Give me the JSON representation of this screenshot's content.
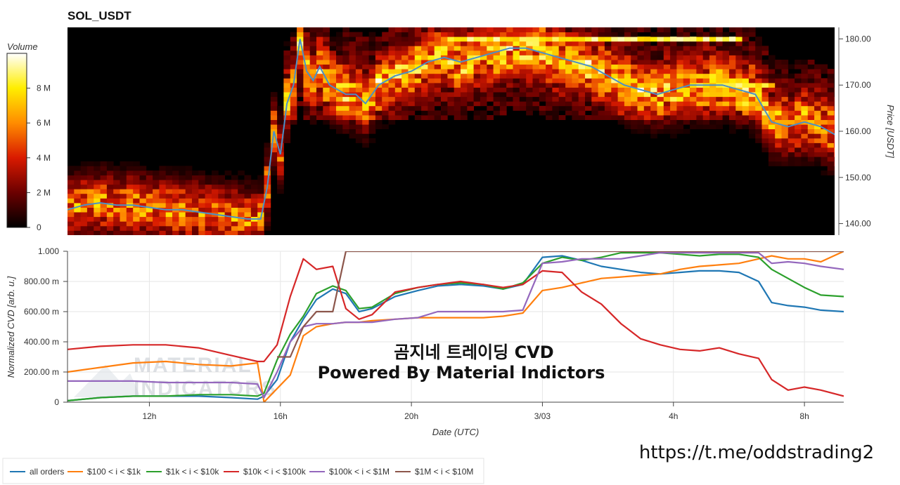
{
  "chart_data": [
    {
      "type": "heatmap",
      "title": "SOL_USDT",
      "ylabel": "Price [USDT]",
      "ylim": [
        137.5,
        182.5
      ],
      "y_ticks": [
        {
          "value": 140,
          "label": "140.00"
        },
        {
          "value": 150,
          "label": "150.00"
        },
        {
          "value": 160,
          "label": "160.00"
        },
        {
          "value": 170,
          "label": "170.00"
        },
        {
          "value": 180,
          "label": "180.00"
        }
      ],
      "colorbar": {
        "title": "Volume",
        "range": [
          0,
          10
        ],
        "ticks": [
          {
            "value": 0,
            "label": "0"
          },
          {
            "value": 2,
            "label": "2 M"
          },
          {
            "value": 4,
            "label": "4 M"
          },
          {
            "value": 6,
            "label": "6 M"
          },
          {
            "value": 8,
            "label": "8 M"
          }
        ],
        "colors": [
          "#000000",
          "#6b0000",
          "#d91a00",
          "#ff8c00",
          "#ffee00",
          "#ffffff"
        ]
      },
      "line_color": "#4a90c8",
      "price_line": {
        "x": [
          9.5,
          10,
          10.5,
          11,
          11.5,
          12,
          12.5,
          13,
          13.5,
          14,
          14.5,
          15,
          15.4,
          15.6,
          15.8,
          16,
          16.2,
          16.4,
          16.6,
          16.8,
          17,
          17.2,
          17.5,
          18,
          18.3,
          18.6,
          19,
          19.5,
          20,
          20.5,
          21,
          21.5,
          22,
          22.5,
          23,
          23.5,
          24,
          24.5,
          25,
          25.5,
          26,
          26.5,
          27,
          27.5,
          28,
          28.5,
          29,
          29.5,
          30,
          30.5,
          31,
          31.5,
          32,
          32.5,
          33,
          33.2
        ],
        "y": [
          143,
          144,
          144.5,
          144,
          144,
          143.5,
          143,
          143,
          142.5,
          142,
          141.5,
          141,
          141,
          148,
          160,
          155,
          166,
          170,
          180,
          173,
          171,
          174,
          170,
          168,
          168,
          166,
          170,
          172,
          173,
          175,
          176,
          175,
          176,
          177,
          178,
          178,
          177,
          176,
          175,
          174,
          172,
          170,
          169,
          168,
          169,
          170,
          170,
          170,
          169,
          168,
          162,
          161,
          162,
          161,
          159,
          159
        ]
      },
      "liquidity_bands": [
        {
          "y": 180,
          "x0": 21.0,
          "x1": 30.0,
          "intensity": 8.5
        },
        {
          "y": 170,
          "x0": 28.5,
          "x1": 31.0,
          "intensity": 8.0
        },
        {
          "y": 162,
          "x0": 31.0,
          "x1": 33.2,
          "intensity": 6.0
        }
      ]
    },
    {
      "type": "line",
      "xlabel": "Date (UTC)",
      "ylabel": "Normalized CVD [arb. u.]",
      "xlim": [
        9.5,
        33.2
      ],
      "ylim": [
        0,
        1.0
      ],
      "x_ticks": [
        {
          "value": 12,
          "label": "12h"
        },
        {
          "value": 16,
          "label": "16h"
        },
        {
          "value": 20,
          "label": "20h"
        },
        {
          "value": 24,
          "label": "3/03"
        },
        {
          "value": 28,
          "label": "4h"
        },
        {
          "value": 32,
          "label": "8h"
        }
      ],
      "y_ticks": [
        {
          "value": 0,
          "label": "0"
        },
        {
          "value": 0.2,
          "label": "200.00 m"
        },
        {
          "value": 0.4,
          "label": "400.00 m"
        },
        {
          "value": 0.6,
          "label": "600.00 m"
        },
        {
          "value": 0.8,
          "label": "800.00 m"
        },
        {
          "value": 1.0,
          "label": "1.000"
        }
      ],
      "x": [
        9.5,
        10.5,
        11.5,
        12.5,
        13.5,
        14.5,
        15.3,
        15.5,
        15.9,
        16.3,
        16.7,
        17.1,
        17.6,
        18.0,
        18.4,
        18.8,
        19.5,
        20.2,
        20.8,
        21.5,
        22.2,
        22.8,
        23.4,
        24.0,
        24.6,
        25.2,
        25.8,
        26.4,
        27.0,
        27.6,
        28.2,
        28.8,
        29.4,
        30.0,
        30.6,
        31.0,
        31.5,
        32.0,
        32.5,
        33.2
      ],
      "series": [
        {
          "name": "all orders",
          "color": "#1f77b4",
          "values": [
            0.01,
            0.03,
            0.04,
            0.04,
            0.04,
            0.03,
            0.02,
            0.04,
            0.15,
            0.4,
            0.55,
            0.68,
            0.75,
            0.72,
            0.6,
            0.62,
            0.7,
            0.74,
            0.77,
            0.78,
            0.77,
            0.75,
            0.78,
            0.96,
            0.97,
            0.94,
            0.9,
            0.88,
            0.86,
            0.85,
            0.86,
            0.87,
            0.87,
            0.86,
            0.8,
            0.66,
            0.64,
            0.63,
            0.61,
            0.6
          ]
        },
        {
          "name": "$100 < i < $1k",
          "color": "#ff7f0e",
          "values": [
            0.2,
            0.23,
            0.26,
            0.27,
            0.25,
            0.24,
            0.26,
            0.0,
            0.09,
            0.18,
            0.44,
            0.5,
            0.52,
            0.53,
            0.53,
            0.54,
            0.55,
            0.56,
            0.56,
            0.56,
            0.56,
            0.57,
            0.59,
            0.74,
            0.76,
            0.79,
            0.82,
            0.83,
            0.84,
            0.85,
            0.88,
            0.9,
            0.91,
            0.92,
            0.95,
            0.97,
            0.95,
            0.95,
            0.93,
            1.0
          ]
        },
        {
          "name": "$1k < i < $10k",
          "color": "#2ca02c",
          "values": [
            0.01,
            0.03,
            0.04,
            0.04,
            0.05,
            0.05,
            0.04,
            0.06,
            0.28,
            0.45,
            0.57,
            0.72,
            0.77,
            0.74,
            0.62,
            0.63,
            0.72,
            0.76,
            0.78,
            0.79,
            0.78,
            0.75,
            0.79,
            0.92,
            0.96,
            0.94,
            0.96,
            0.99,
            0.99,
            0.99,
            0.98,
            0.97,
            0.98,
            0.98,
            0.96,
            0.88,
            0.82,
            0.76,
            0.71,
            0.7
          ]
        },
        {
          "name": "$10k < i < $100k",
          "color": "#d62728",
          "values": [
            0.35,
            0.37,
            0.38,
            0.38,
            0.36,
            0.31,
            0.27,
            0.27,
            0.38,
            0.7,
            0.95,
            0.88,
            0.9,
            0.62,
            0.55,
            0.58,
            0.73,
            0.76,
            0.78,
            0.8,
            0.78,
            0.76,
            0.78,
            0.87,
            0.86,
            0.73,
            0.65,
            0.52,
            0.42,
            0.38,
            0.35,
            0.34,
            0.36,
            0.32,
            0.29,
            0.15,
            0.08,
            0.1,
            0.08,
            0.04
          ]
        },
        {
          "name": "$100k < i < $1M",
          "color": "#9467bd",
          "values": [
            0.14,
            0.14,
            0.14,
            0.13,
            0.13,
            0.13,
            0.12,
            0.03,
            0.2,
            0.4,
            0.5,
            0.52,
            0.52,
            0.53,
            0.53,
            0.53,
            0.55,
            0.56,
            0.6,
            0.6,
            0.6,
            0.6,
            0.61,
            0.92,
            0.93,
            0.95,
            0.95,
            0.95,
            0.97,
            0.99,
            0.99,
            0.99,
            0.99,
            0.99,
            0.99,
            0.92,
            0.93,
            0.92,
            0.9,
            0.88
          ]
        },
        {
          "name": "$1M < i < $10M",
          "color": "#8c564b",
          "values": [
            null,
            null,
            null,
            null,
            null,
            null,
            null,
            null,
            0.3,
            0.3,
            0.5,
            0.6,
            0.6,
            1.0,
            1.0,
            1.0,
            1.0,
            1.0,
            1.0,
            1.0,
            1.0,
            1.0,
            1.0,
            1.0,
            1.0,
            1.0,
            1.0,
            1.0,
            1.0,
            1.0,
            1.0,
            1.0,
            1.0,
            1.0,
            1.0,
            1.0,
            1.0,
            1.0,
            1.0,
            1.0
          ]
        }
      ]
    }
  ],
  "watermark": {
    "line1": "곰지네 트레이딩 CVD",
    "line2": "Powered By Material Indictors",
    "url": "https://t.me/oddstrading2",
    "logo_line1": "MATERIAL",
    "logo_line2": "INDICATORS"
  }
}
